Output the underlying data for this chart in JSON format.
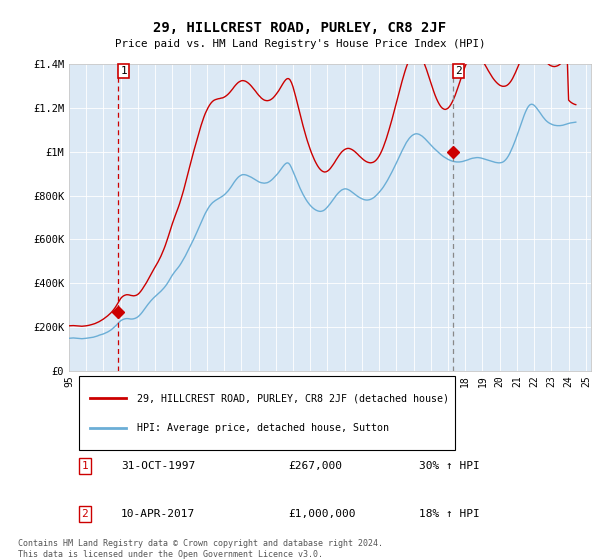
{
  "title": "29, HILLCREST ROAD, PURLEY, CR8 2JF",
  "subtitle": "Price paid vs. HM Land Registry's House Price Index (HPI)",
  "ylim": [
    0,
    1400000
  ],
  "yticks": [
    0,
    200000,
    400000,
    600000,
    800000,
    1000000,
    1200000,
    1400000
  ],
  "ytick_labels": [
    "£0",
    "£200K",
    "£400K",
    "£600K",
    "£800K",
    "£1M",
    "£1.2M",
    "£1.4M"
  ],
  "hpi_color": "#6baed6",
  "plot_bg_color": "#dce9f5",
  "price_color": "#cc0000",
  "sale1_vline_color": "#cc0000",
  "sale2_vline_color": "#888888",
  "grid_color": "#ffffff",
  "background_color": "#ffffff",
  "legend_label_price": "29, HILLCREST ROAD, PURLEY, CR8 2JF (detached house)",
  "legend_label_hpi": "HPI: Average price, detached house, Sutton",
  "sale1_label": "1",
  "sale1_date": "31-OCT-1997",
  "sale1_price": "£267,000",
  "sale1_hpi": "30% ↑ HPI",
  "sale1_year": 1997.83,
  "sale1_value": 267000,
  "sale2_label": "2",
  "sale2_date": "10-APR-2017",
  "sale2_price": "£1,000,000",
  "sale2_hpi": "18% ↑ HPI",
  "sale2_year": 2017.27,
  "sale2_value": 1000000,
  "copyright_text": "Contains HM Land Registry data © Crown copyright and database right 2024.\nThis data is licensed under the Open Government Licence v3.0.",
  "hpi_monthly_years": [
    1995.0,
    1995.083,
    1995.167,
    1995.25,
    1995.333,
    1995.417,
    1995.5,
    1995.583,
    1995.667,
    1995.75,
    1995.833,
    1995.917,
    1996.0,
    1996.083,
    1996.167,
    1996.25,
    1996.333,
    1996.417,
    1996.5,
    1996.583,
    1996.667,
    1996.75,
    1996.833,
    1996.917,
    1997.0,
    1997.083,
    1997.167,
    1997.25,
    1997.333,
    1997.417,
    1997.5,
    1997.583,
    1997.667,
    1997.75,
    1997.833,
    1997.917,
    1998.0,
    1998.083,
    1998.167,
    1998.25,
    1998.333,
    1998.417,
    1998.5,
    1998.583,
    1998.667,
    1998.75,
    1998.833,
    1998.917,
    1999.0,
    1999.083,
    1999.167,
    1999.25,
    1999.333,
    1999.417,
    1999.5,
    1999.583,
    1999.667,
    1999.75,
    1999.833,
    1999.917,
    2000.0,
    2000.083,
    2000.167,
    2000.25,
    2000.333,
    2000.417,
    2000.5,
    2000.583,
    2000.667,
    2000.75,
    2000.833,
    2000.917,
    2001.0,
    2001.083,
    2001.167,
    2001.25,
    2001.333,
    2001.417,
    2001.5,
    2001.583,
    2001.667,
    2001.75,
    2001.833,
    2001.917,
    2002.0,
    2002.083,
    2002.167,
    2002.25,
    2002.333,
    2002.417,
    2002.5,
    2002.583,
    2002.667,
    2002.75,
    2002.833,
    2002.917,
    2003.0,
    2003.083,
    2003.167,
    2003.25,
    2003.333,
    2003.417,
    2003.5,
    2003.583,
    2003.667,
    2003.75,
    2003.833,
    2003.917,
    2004.0,
    2004.083,
    2004.167,
    2004.25,
    2004.333,
    2004.417,
    2004.5,
    2004.583,
    2004.667,
    2004.75,
    2004.833,
    2004.917,
    2005.0,
    2005.083,
    2005.167,
    2005.25,
    2005.333,
    2005.417,
    2005.5,
    2005.583,
    2005.667,
    2005.75,
    2005.833,
    2005.917,
    2006.0,
    2006.083,
    2006.167,
    2006.25,
    2006.333,
    2006.417,
    2006.5,
    2006.583,
    2006.667,
    2006.75,
    2006.833,
    2006.917,
    2007.0,
    2007.083,
    2007.167,
    2007.25,
    2007.333,
    2007.417,
    2007.5,
    2007.583,
    2007.667,
    2007.75,
    2007.833,
    2007.917,
    2008.0,
    2008.083,
    2008.167,
    2008.25,
    2008.333,
    2008.417,
    2008.5,
    2008.583,
    2008.667,
    2008.75,
    2008.833,
    2008.917,
    2009.0,
    2009.083,
    2009.167,
    2009.25,
    2009.333,
    2009.417,
    2009.5,
    2009.583,
    2009.667,
    2009.75,
    2009.833,
    2009.917,
    2010.0,
    2010.083,
    2010.167,
    2010.25,
    2010.333,
    2010.417,
    2010.5,
    2010.583,
    2010.667,
    2010.75,
    2010.833,
    2010.917,
    2011.0,
    2011.083,
    2011.167,
    2011.25,
    2011.333,
    2011.417,
    2011.5,
    2011.583,
    2011.667,
    2011.75,
    2011.833,
    2011.917,
    2012.0,
    2012.083,
    2012.167,
    2012.25,
    2012.333,
    2012.417,
    2012.5,
    2012.583,
    2012.667,
    2012.75,
    2012.833,
    2012.917,
    2013.0,
    2013.083,
    2013.167,
    2013.25,
    2013.333,
    2013.417,
    2013.5,
    2013.583,
    2013.667,
    2013.75,
    2013.833,
    2013.917,
    2014.0,
    2014.083,
    2014.167,
    2014.25,
    2014.333,
    2014.417,
    2014.5,
    2014.583,
    2014.667,
    2014.75,
    2014.833,
    2014.917,
    2015.0,
    2015.083,
    2015.167,
    2015.25,
    2015.333,
    2015.417,
    2015.5,
    2015.583,
    2015.667,
    2015.75,
    2015.833,
    2015.917,
    2016.0,
    2016.083,
    2016.167,
    2016.25,
    2016.333,
    2016.417,
    2016.5,
    2016.583,
    2016.667,
    2016.75,
    2016.833,
    2016.917,
    2017.0,
    2017.083,
    2017.167,
    2017.25,
    2017.333,
    2017.417,
    2017.5,
    2017.583,
    2017.667,
    2017.75,
    2017.833,
    2017.917,
    2018.0,
    2018.083,
    2018.167,
    2018.25,
    2018.333,
    2018.417,
    2018.5,
    2018.583,
    2018.667,
    2018.75,
    2018.833,
    2018.917,
    2019.0,
    2019.083,
    2019.167,
    2019.25,
    2019.333,
    2019.417,
    2019.5,
    2019.583,
    2019.667,
    2019.75,
    2019.833,
    2019.917,
    2020.0,
    2020.083,
    2020.167,
    2020.25,
    2020.333,
    2020.417,
    2020.5,
    2020.583,
    2020.667,
    2020.75,
    2020.833,
    2020.917,
    2021.0,
    2021.083,
    2021.167,
    2021.25,
    2021.333,
    2021.417,
    2021.5,
    2021.583,
    2021.667,
    2021.75,
    2021.833,
    2021.917,
    2022.0,
    2022.083,
    2022.167,
    2022.25,
    2022.333,
    2022.417,
    2022.5,
    2022.583,
    2022.667,
    2022.75,
    2022.833,
    2022.917,
    2023.0,
    2023.083,
    2023.167,
    2023.25,
    2023.333,
    2023.417,
    2023.5,
    2023.583,
    2023.667,
    2023.75,
    2023.833,
    2023.917,
    2024.0,
    2024.083,
    2024.167,
    2024.25,
    2024.333,
    2024.417
  ],
  "hpi_monthly_values": [
    148000,
    148500,
    149000,
    149500,
    149000,
    148500,
    148000,
    147000,
    146500,
    146000,
    146500,
    147000,
    148000,
    149000,
    150000,
    151000,
    152000,
    153000,
    155000,
    157000,
    159000,
    162000,
    164000,
    166000,
    168000,
    171000,
    174000,
    177000,
    181000,
    185000,
    190000,
    196000,
    202000,
    208000,
    215000,
    222000,
    228000,
    232000,
    235000,
    237000,
    238000,
    238000,
    237000,
    236000,
    236000,
    237000,
    239000,
    242000,
    246000,
    252000,
    259000,
    267000,
    276000,
    285000,
    294000,
    303000,
    311000,
    319000,
    326000,
    333000,
    339000,
    345000,
    351000,
    357000,
    363000,
    370000,
    377000,
    385000,
    394000,
    404000,
    415000,
    427000,
    437000,
    446000,
    455000,
    463000,
    471000,
    480000,
    490000,
    501000,
    512000,
    524000,
    537000,
    550000,
    563000,
    577000,
    590000,
    603000,
    617000,
    632000,
    647000,
    662000,
    677000,
    692000,
    706000,
    720000,
    732000,
    743000,
    753000,
    761000,
    768000,
    773000,
    778000,
    782000,
    786000,
    790000,
    794000,
    798000,
    803000,
    809000,
    816000,
    823000,
    832000,
    841000,
    851000,
    861000,
    870000,
    878000,
    885000,
    890000,
    894000,
    896000,
    896000,
    895000,
    893000,
    890000,
    887000,
    884000,
    880000,
    876000,
    872000,
    868000,
    864000,
    861000,
    859000,
    858000,
    857000,
    858000,
    859000,
    862000,
    866000,
    871000,
    877000,
    884000,
    891000,
    898000,
    906000,
    915000,
    924000,
    933000,
    941000,
    947000,
    950000,
    948000,
    940000,
    927000,
    912000,
    896000,
    880000,
    864000,
    848000,
    833000,
    819000,
    806000,
    794000,
    783000,
    773000,
    764000,
    756000,
    749000,
    743000,
    738000,
    734000,
    731000,
    729000,
    728000,
    729000,
    731000,
    735000,
    741000,
    748000,
    756000,
    764000,
    773000,
    782000,
    791000,
    800000,
    808000,
    815000,
    821000,
    826000,
    829000,
    831000,
    831000,
    829000,
    826000,
    822000,
    817000,
    812000,
    807000,
    802000,
    797000,
    793000,
    789000,
    786000,
    783000,
    781000,
    780000,
    780000,
    781000,
    783000,
    786000,
    790000,
    795000,
    801000,
    808000,
    815000,
    823000,
    831000,
    840000,
    850000,
    861000,
    872000,
    884000,
    896000,
    909000,
    922000,
    935000,
    949000,
    963000,
    977000,
    991000,
    1005000,
    1018000,
    1031000,
    1043000,
    1053000,
    1062000,
    1069000,
    1075000,
    1079000,
    1082000,
    1083000,
    1082000,
    1080000,
    1076000,
    1072000,
    1066000,
    1060000,
    1053000,
    1046000,
    1039000,
    1032000,
    1025000,
    1018000,
    1012000,
    1006000,
    1000000,
    994000,
    988000,
    983000,
    978000,
    974000,
    970000,
    966000,
    963000,
    960000,
    958000,
    956000,
    955000,
    954000,
    954000,
    954000,
    955000,
    956000,
    958000,
    960000,
    962000,
    964000,
    967000,
    969000,
    971000,
    972000,
    973000,
    974000,
    974000,
    973000,
    972000,
    970000,
    968000,
    966000,
    964000,
    962000,
    960000,
    958000,
    956000,
    954000,
    952000,
    951000,
    950000,
    950000,
    951000,
    953000,
    957000,
    963000,
    971000,
    981000,
    993000,
    1007000,
    1022000,
    1038000,
    1055000,
    1073000,
    1092000,
    1111000,
    1130000,
    1149000,
    1167000,
    1183000,
    1197000,
    1208000,
    1215000,
    1218000,
    1217000,
    1213000,
    1206000,
    1198000,
    1189000,
    1180000,
    1170000,
    1161000,
    1153000,
    1145000,
    1139000,
    1134000,
    1130000,
    1127000,
    1124000,
    1122000,
    1121000,
    1120000,
    1120000,
    1120000,
    1121000,
    1122000,
    1124000,
    1126000,
    1128000,
    1130000,
    1132000,
    1133000,
    1134000,
    1135000,
    1136000
  ],
  "price_monthly_years": [
    1995.0,
    1995.083,
    1995.167,
    1995.25,
    1995.333,
    1995.417,
    1995.5,
    1995.583,
    1995.667,
    1995.75,
    1995.833,
    1995.917,
    1996.0,
    1996.083,
    1996.167,
    1996.25,
    1996.333,
    1996.417,
    1996.5,
    1996.583,
    1996.667,
    1996.75,
    1996.833,
    1996.917,
    1997.0,
    1997.083,
    1997.167,
    1997.25,
    1997.333,
    1997.417,
    1997.5,
    1997.583,
    1997.667,
    1997.75,
    1997.833,
    1997.917,
    1998.0,
    1998.083,
    1998.167,
    1998.25,
    1998.333,
    1998.417,
    1998.5,
    1998.583,
    1998.667,
    1998.75,
    1998.833,
    1998.917,
    1999.0,
    1999.083,
    1999.167,
    1999.25,
    1999.333,
    1999.417,
    1999.5,
    1999.583,
    1999.667,
    1999.75,
    1999.833,
    1999.917,
    2000.0,
    2000.083,
    2000.167,
    2000.25,
    2000.333,
    2000.417,
    2000.5,
    2000.583,
    2000.667,
    2000.75,
    2000.833,
    2000.917,
    2001.0,
    2001.083,
    2001.167,
    2001.25,
    2001.333,
    2001.417,
    2001.5,
    2001.583,
    2001.667,
    2001.75,
    2001.833,
    2001.917,
    2002.0,
    2002.083,
    2002.167,
    2002.25,
    2002.333,
    2002.417,
    2002.5,
    2002.583,
    2002.667,
    2002.75,
    2002.833,
    2002.917,
    2003.0,
    2003.083,
    2003.167,
    2003.25,
    2003.333,
    2003.417,
    2003.5,
    2003.583,
    2003.667,
    2003.75,
    2003.833,
    2003.917,
    2004.0,
    2004.083,
    2004.167,
    2004.25,
    2004.333,
    2004.417,
    2004.5,
    2004.583,
    2004.667,
    2004.75,
    2004.833,
    2004.917,
    2005.0,
    2005.083,
    2005.167,
    2005.25,
    2005.333,
    2005.417,
    2005.5,
    2005.583,
    2005.667,
    2005.75,
    2005.833,
    2005.917,
    2006.0,
    2006.083,
    2006.167,
    2006.25,
    2006.333,
    2006.417,
    2006.5,
    2006.583,
    2006.667,
    2006.75,
    2006.833,
    2006.917,
    2007.0,
    2007.083,
    2007.167,
    2007.25,
    2007.333,
    2007.417,
    2007.5,
    2007.583,
    2007.667,
    2007.75,
    2007.833,
    2007.917,
    2008.0,
    2008.083,
    2008.167,
    2008.25,
    2008.333,
    2008.417,
    2008.5,
    2008.583,
    2008.667,
    2008.75,
    2008.833,
    2008.917,
    2009.0,
    2009.083,
    2009.167,
    2009.25,
    2009.333,
    2009.417,
    2009.5,
    2009.583,
    2009.667,
    2009.75,
    2009.833,
    2009.917,
    2010.0,
    2010.083,
    2010.167,
    2010.25,
    2010.333,
    2010.417,
    2010.5,
    2010.583,
    2010.667,
    2010.75,
    2010.833,
    2010.917,
    2011.0,
    2011.083,
    2011.167,
    2011.25,
    2011.333,
    2011.417,
    2011.5,
    2011.583,
    2011.667,
    2011.75,
    2011.833,
    2011.917,
    2012.0,
    2012.083,
    2012.167,
    2012.25,
    2012.333,
    2012.417,
    2012.5,
    2012.583,
    2012.667,
    2012.75,
    2012.833,
    2012.917,
    2013.0,
    2013.083,
    2013.167,
    2013.25,
    2013.333,
    2013.417,
    2013.5,
    2013.583,
    2013.667,
    2013.75,
    2013.833,
    2013.917,
    2014.0,
    2014.083,
    2014.167,
    2014.25,
    2014.333,
    2014.417,
    2014.5,
    2014.583,
    2014.667,
    2014.75,
    2014.833,
    2014.917,
    2015.0,
    2015.083,
    2015.167,
    2015.25,
    2015.333,
    2015.417,
    2015.5,
    2015.583,
    2015.667,
    2015.75,
    2015.833,
    2015.917,
    2016.0,
    2016.083,
    2016.167,
    2016.25,
    2016.333,
    2016.417,
    2016.5,
    2016.583,
    2016.667,
    2016.75,
    2016.833,
    2016.917,
    2017.0,
    2017.083,
    2017.167,
    2017.25,
    2017.333,
    2017.417,
    2017.5,
    2017.583,
    2017.667,
    2017.75,
    2017.833,
    2017.917,
    2018.0,
    2018.083,
    2018.167,
    2018.25,
    2018.333,
    2018.417,
    2018.5,
    2018.583,
    2018.667,
    2018.75,
    2018.833,
    2018.917,
    2019.0,
    2019.083,
    2019.167,
    2019.25,
    2019.333,
    2019.417,
    2019.5,
    2019.583,
    2019.667,
    2019.75,
    2019.833,
    2019.917,
    2020.0,
    2020.083,
    2020.167,
    2020.25,
    2020.333,
    2020.417,
    2020.5,
    2020.583,
    2020.667,
    2020.75,
    2020.833,
    2020.917,
    2021.0,
    2021.083,
    2021.167,
    2021.25,
    2021.333,
    2021.417,
    2021.5,
    2021.583,
    2021.667,
    2021.75,
    2021.833,
    2021.917,
    2022.0,
    2022.083,
    2022.167,
    2022.25,
    2022.333,
    2022.417,
    2022.5,
    2022.583,
    2022.667,
    2022.75,
    2022.833,
    2022.917,
    2023.0,
    2023.083,
    2023.167,
    2023.25,
    2023.333,
    2023.417,
    2023.5,
    2023.583,
    2023.667,
    2023.75,
    2023.833,
    2023.917,
    2024.0,
    2024.083,
    2024.167,
    2024.25,
    2024.333,
    2024.417
  ],
  "price_monthly_values": [
    205000,
    205500,
    206000,
    206000,
    205500,
    205000,
    204000,
    203500,
    203000,
    203000,
    203500,
    204000,
    205000,
    206000,
    207500,
    209000,
    211000,
    213000,
    215000,
    218000,
    221000,
    224000,
    228000,
    232000,
    236000,
    241000,
    246000,
    251000,
    257000,
    263000,
    270000,
    278000,
    287000,
    297000,
    308000,
    320000,
    330000,
    337000,
    342000,
    345000,
    347000,
    347000,
    346000,
    344000,
    343000,
    342000,
    343000,
    345000,
    349000,
    355000,
    363000,
    372000,
    382000,
    392000,
    403000,
    415000,
    427000,
    439000,
    451000,
    463000,
    474000,
    485000,
    497000,
    510000,
    523000,
    538000,
    554000,
    571000,
    590000,
    610000,
    631000,
    653000,
    672000,
    691000,
    709000,
    726000,
    744000,
    763000,
    784000,
    806000,
    829000,
    854000,
    879000,
    905000,
    930000,
    956000,
    982000,
    1006000,
    1029000,
    1053000,
    1076000,
    1099000,
    1121000,
    1141000,
    1160000,
    1177000,
    1191000,
    1204000,
    1215000,
    1224000,
    1231000,
    1236000,
    1239000,
    1241000,
    1243000,
    1244000,
    1246000,
    1247000,
    1250000,
    1254000,
    1259000,
    1265000,
    1272000,
    1280000,
    1288000,
    1297000,
    1305000,
    1312000,
    1318000,
    1322000,
    1325000,
    1326000,
    1325000,
    1323000,
    1319000,
    1314000,
    1308000,
    1301000,
    1293000,
    1285000,
    1277000,
    1268000,
    1260000,
    1253000,
    1246000,
    1241000,
    1237000,
    1235000,
    1234000,
    1235000,
    1237000,
    1241000,
    1246000,
    1253000,
    1261000,
    1270000,
    1279000,
    1290000,
    1301000,
    1312000,
    1322000,
    1330000,
    1335000,
    1335000,
    1329000,
    1316000,
    1298000,
    1275000,
    1250000,
    1224000,
    1197000,
    1171000,
    1145000,
    1120000,
    1096000,
    1073000,
    1051000,
    1031000,
    1012000,
    994000,
    978000,
    963000,
    950000,
    938000,
    928000,
    920000,
    914000,
    910000,
    908000,
    909000,
    912000,
    917000,
    924000,
    933000,
    942000,
    952000,
    963000,
    973000,
    983000,
    992000,
    1000000,
    1006000,
    1011000,
    1014000,
    1016000,
    1016000,
    1014000,
    1011000,
    1007000,
    1002000,
    996000,
    990000,
    983000,
    977000,
    971000,
    965000,
    960000,
    956000,
    953000,
    951000,
    950000,
    951000,
    953000,
    957000,
    963000,
    971000,
    981000,
    993000,
    1007000,
    1023000,
    1041000,
    1060000,
    1081000,
    1103000,
    1126000,
    1149000,
    1174000,
    1198000,
    1223000,
    1248000,
    1273000,
    1298000,
    1323000,
    1346000,
    1368000,
    1388000,
    1406000,
    1422000,
    1435000,
    1445000,
    1452000,
    1456000,
    1457000,
    1454000,
    1448000,
    1439000,
    1427000,
    1412000,
    1395000,
    1377000,
    1357000,
    1337000,
    1316000,
    1296000,
    1277000,
    1259000,
    1243000,
    1229000,
    1217000,
    1207000,
    1200000,
    1196000,
    1194000,
    1196000,
    1200000,
    1207000,
    1217000,
    1229000,
    1243000,
    1259000,
    1277000,
    1296000,
    1316000,
    1336000,
    1356000,
    1374000,
    1392000,
    1408000,
    1422000,
    1433000,
    1442000,
    1448000,
    1451000,
    1451000,
    1449000,
    1444000,
    1437000,
    1428000,
    1418000,
    1407000,
    1396000,
    1384000,
    1372000,
    1361000,
    1350000,
    1340000,
    1331000,
    1323000,
    1316000,
    1310000,
    1305000,
    1302000,
    1300000,
    1300000,
    1301000,
    1304000,
    1309000,
    1316000,
    1325000,
    1336000,
    1349000,
    1363000,
    1378000,
    1394000,
    1410000,
    1426000,
    1441000,
    1455000,
    1467000,
    1477000,
    1484000,
    1488000,
    1489000,
    1487000,
    1483000,
    1476000,
    1468000,
    1459000,
    1450000,
    1440000,
    1431000,
    1422000,
    1414000,
    1407000,
    1401000,
    1396000,
    1393000,
    1391000,
    1390000,
    1391000,
    1393000,
    1396000,
    1401000,
    1407000,
    1414000,
    1421000,
    1429000,
    1437000,
    1237000,
    1230000,
    1225000,
    1221000,
    1218000,
    1216000
  ]
}
